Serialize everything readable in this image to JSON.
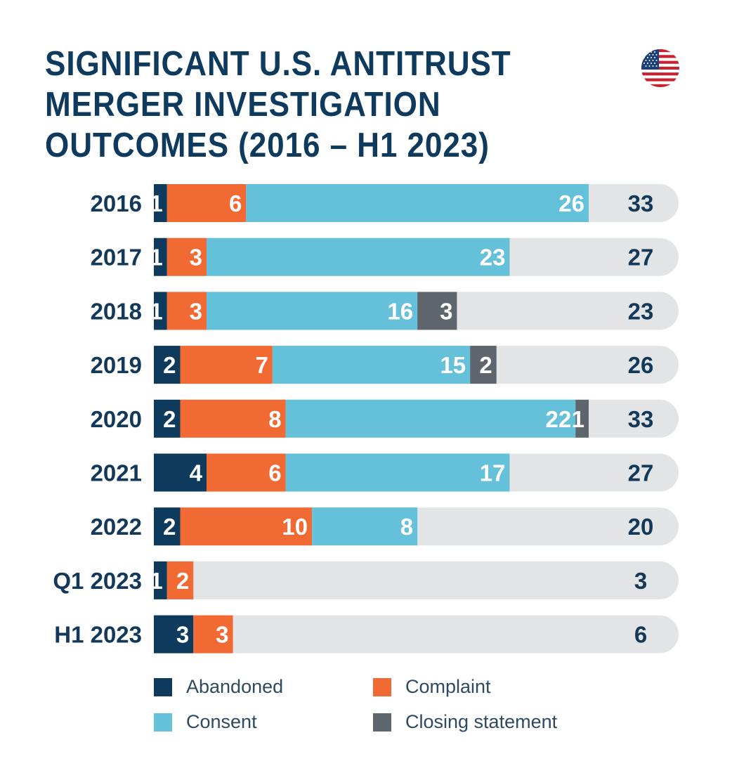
{
  "title_lines": [
    "SIGNIFICANT U.S. ANTITRUST",
    "MERGER INVESTIGATION",
    "OUTCOMES (2016 – H1 2023)"
  ],
  "flag_icon": "us-flag-icon",
  "colors": {
    "Abandoned": "#0d3a5d",
    "Complaint": "#f26a33",
    "Consent": "#64c1d9",
    "Closing statement": "#5f656c",
    "track": "#e3e4e6",
    "label": "#12385a",
    "segment_text": "#ffffff"
  },
  "chart_data": {
    "type": "bar",
    "orientation": "horizontal",
    "stacked": true,
    "title": "SIGNIFICANT U.S. ANTITRUST MERGER INVESTIGATION OUTCOMES (2016 – H1 2023)",
    "categories": [
      "2016",
      "2017",
      "2018",
      "2019",
      "2020",
      "2021",
      "2022",
      "Q1 2023",
      "H1 2023"
    ],
    "series": [
      {
        "name": "Abandoned",
        "values": [
          1,
          1,
          1,
          2,
          2,
          4,
          2,
          1,
          3
        ]
      },
      {
        "name": "Complaint",
        "values": [
          6,
          3,
          3,
          7,
          8,
          6,
          10,
          2,
          3
        ]
      },
      {
        "name": "Consent",
        "values": [
          26,
          23,
          16,
          15,
          22,
          17,
          8,
          0,
          0
        ]
      },
      {
        "name": "Closing statement",
        "values": [
          0,
          0,
          3,
          2,
          1,
          0,
          0,
          0,
          0
        ]
      }
    ],
    "totals": [
      33,
      27,
      23,
      26,
      33,
      27,
      20,
      3,
      6
    ],
    "xlim": [
      0,
      40
    ],
    "legend_position": "bottom",
    "grid": false
  },
  "legend": [
    {
      "name": "Abandoned",
      "label": "Abandoned"
    },
    {
      "name": "Complaint",
      "label": "Complaint"
    },
    {
      "name": "Consent",
      "label": "Consent"
    },
    {
      "name": "Closing statement",
      "label": "Closing statement"
    }
  ]
}
